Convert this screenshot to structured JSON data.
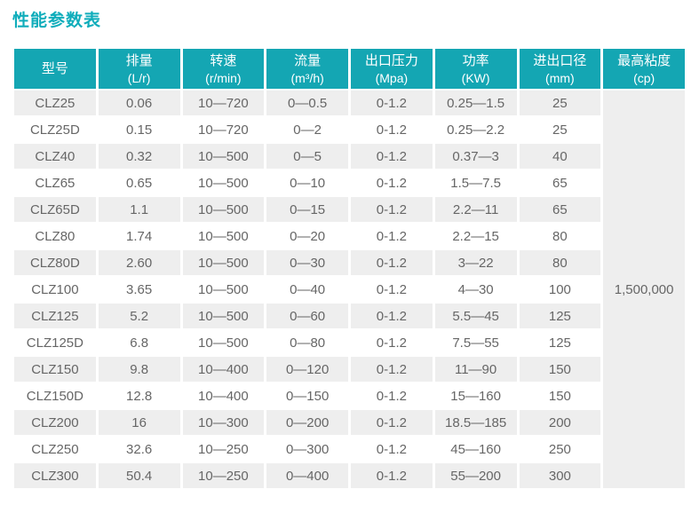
{
  "page": {
    "title": "性能参数表"
  },
  "colors": {
    "accent_teal": "#14a6b3",
    "title_teal": "#0fadbb",
    "stripe_gray": "#eeeeee",
    "cell_text_gray": "#666666",
    "header_text": "#ffffff"
  },
  "chart_data": {
    "type": "table",
    "title": "性能参数表",
    "columns": [
      {
        "key": "model",
        "label": "型号",
        "unit": ""
      },
      {
        "key": "displacement",
        "label": "排量",
        "unit": "(L/r)"
      },
      {
        "key": "speed",
        "label": "转速",
        "unit": "(r/min)"
      },
      {
        "key": "flow",
        "label": "流量",
        "unit": "(m³/h)"
      },
      {
        "key": "outlet-pressure",
        "label": "出口压力",
        "unit": "(Mpa)"
      },
      {
        "key": "power",
        "label": "功率",
        "unit": "(KW)"
      },
      {
        "key": "port-diameter",
        "label": "进出口径",
        "unit": "(mm)"
      },
      {
        "key": "max-viscosity",
        "label": "最高粘度",
        "unit": "(cp)"
      }
    ],
    "rows": [
      [
        "CLZ25",
        "0.06",
        "10—720",
        "0—0.5",
        "0-1.2",
        "0.25—1.5",
        "25"
      ],
      [
        "CLZ25D",
        "0.15",
        "10—720",
        "0—2",
        "0-1.2",
        "0.25—2.2",
        "25"
      ],
      [
        "CLZ40",
        "0.32",
        "10—500",
        "0—5",
        "0-1.2",
        "0.37—3",
        "40"
      ],
      [
        "CLZ65",
        "0.65",
        "10—500",
        "0—10",
        "0-1.2",
        "1.5—7.5",
        "65"
      ],
      [
        "CLZ65D",
        "1.1",
        "10—500",
        "0—15",
        "0-1.2",
        "2.2—11",
        "65"
      ],
      [
        "CLZ80",
        "1.74",
        "10—500",
        "0—20",
        "0-1.2",
        "2.2—15",
        "80"
      ],
      [
        "CLZ80D",
        "2.60",
        "10—500",
        "0—30",
        "0-1.2",
        "3—22",
        "80"
      ],
      [
        "CLZ100",
        "3.65",
        "10—500",
        "0—40",
        "0-1.2",
        "4—30",
        "100"
      ],
      [
        "CLZ125",
        "5.2",
        "10—500",
        "0—60",
        "0-1.2",
        "5.5—45",
        "125"
      ],
      [
        "CLZ125D",
        "6.8",
        "10—500",
        "0—80",
        "0-1.2",
        "7.5—55",
        "125"
      ],
      [
        "CLZ150",
        "9.8",
        "10—400",
        "0—120",
        "0-1.2",
        "11—90",
        "150"
      ],
      [
        "CLZ150D",
        "12.8",
        "10—400",
        "0—150",
        "0-1.2",
        "15—160",
        "150"
      ],
      [
        "CLZ200",
        "16",
        "10—300",
        "0—200",
        "0-1.2",
        "18.5—185",
        "200"
      ],
      [
        "CLZ250",
        "32.6",
        "10—250",
        "0—300",
        "0-1.2",
        "45—160",
        "250"
      ],
      [
        "CLZ300",
        "50.4",
        "10—250",
        "0—400",
        "0-1.2",
        "55—200",
        "300"
      ]
    ],
    "max_viscosity_merged": "1,500,000"
  }
}
